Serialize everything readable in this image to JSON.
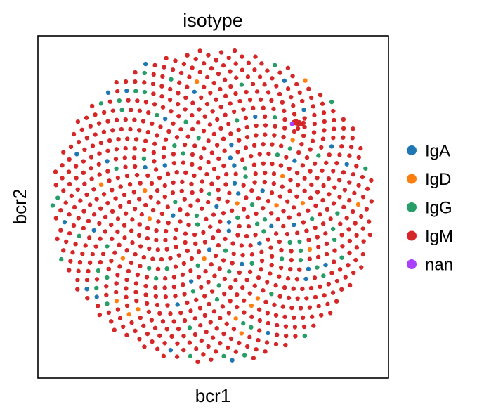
{
  "chart_data": {
    "type": "scatter",
    "title": "isotype",
    "xlabel": "bcr1",
    "ylabel": "bcr2",
    "grid": false,
    "ticks": false,
    "legend_position": "right",
    "categories": [
      "IgA",
      "IgD",
      "IgG",
      "IgM",
      "nan"
    ],
    "colors": {
      "IgA": "#1f77b4",
      "IgD": "#ff7f0e",
      "IgG": "#279e68",
      "IgM": "#d62728",
      "nan": "#aa40fc"
    },
    "embedding": {
      "distribution": "uniform disc",
      "center": [
        0,
        0
      ],
      "radius": 1.0,
      "point_count": 940,
      "cluster": {
        "category": "IgM",
        "center": [
          0.53,
          0.52
        ],
        "radius": 0.035,
        "count": 8
      },
      "nan_points": [
        [
          0.49,
          0.525
        ]
      ]
    },
    "category_counts": {
      "IgA": 42,
      "IgD": 21,
      "IgG": 73,
      "IgM": 804,
      "nan": 1
    }
  }
}
